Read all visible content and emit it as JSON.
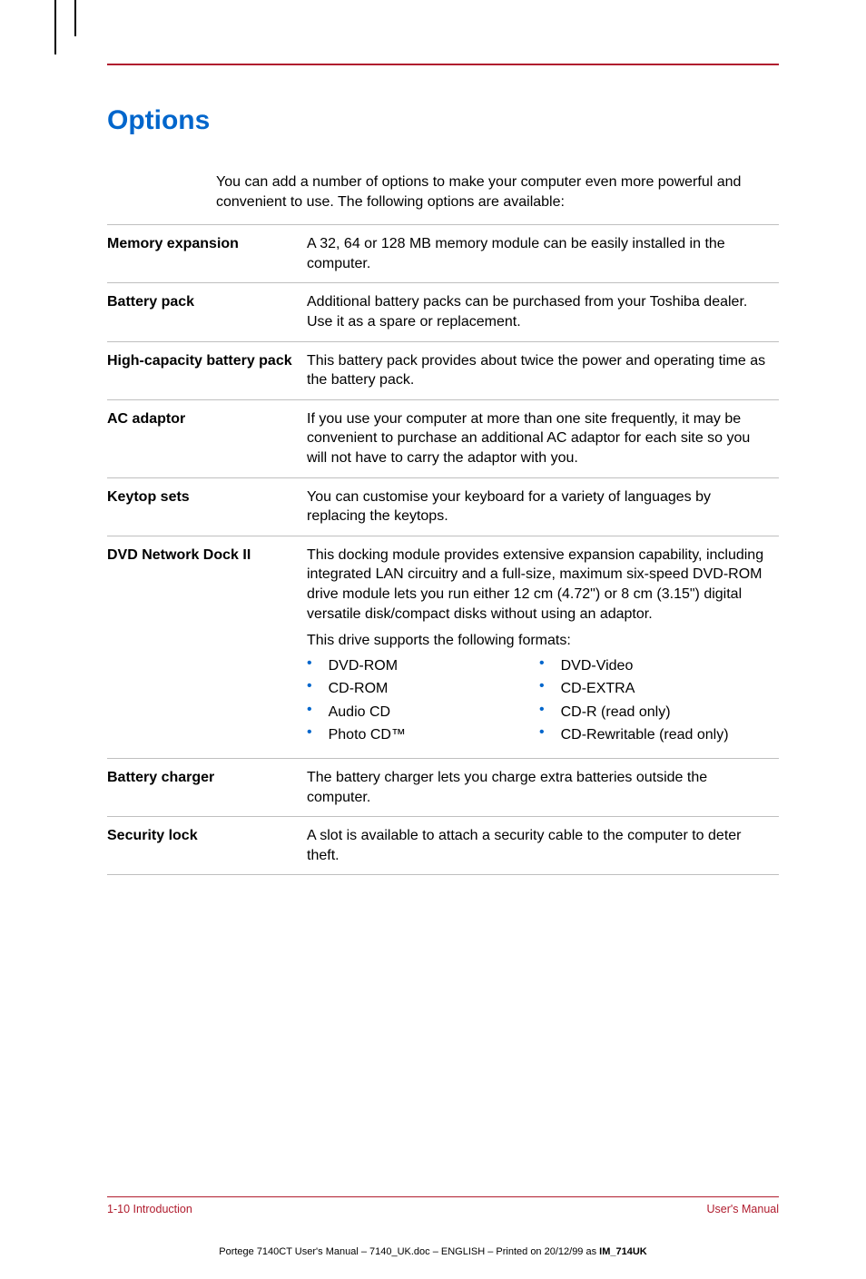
{
  "colors": {
    "accent_red": "#b01c2e",
    "heading_blue": "#0066cc",
    "bullet_blue": "#0066cc",
    "rule_gray": "#bfbfbf",
    "text_black": "#000000",
    "background": "#ffffff"
  },
  "typography": {
    "heading_fontsize": 30,
    "body_fontsize": 16,
    "footer_fontsize": 12.5,
    "printinfo_fontsize": 11,
    "font_family": "Arial"
  },
  "heading": "Options",
  "intro": "You can add a number of options to make your computer even more powerful and convenient to use. The following options are available:",
  "options": [
    {
      "label": "Memory expansion",
      "desc": "A 32, 64 or 128 MB memory module can be easily installed in the computer."
    },
    {
      "label": "Battery pack",
      "desc": "Additional battery packs can be purchased from your Toshiba dealer. Use it as a spare or replacement."
    },
    {
      "label": "High-capacity battery pack",
      "desc": "This battery pack provides about twice the power and operating time as the battery pack."
    },
    {
      "label": "AC adaptor",
      "desc": "If you use your computer at more than one site frequently, it may be convenient to purchase an additional AC adaptor for each site so you will not have to carry the adaptor with you."
    },
    {
      "label": "Keytop sets",
      "desc": "You can customise your keyboard for a variety of languages by replacing the keytops."
    },
    {
      "label": "DVD Network Dock II",
      "desc": "This docking module provides extensive expansion capability, including integrated LAN circuitry and a full-size, maximum six-speed DVD-ROM drive module lets you run either 12 cm (4.72\") or 8 cm (3.15\") digital versatile disk/compact disks without using an adaptor.",
      "formats_intro": "This drive supports the following formats:",
      "formats_left": [
        "DVD-ROM",
        "CD-ROM",
        "Audio CD",
        "Photo CD™"
      ],
      "formats_right": [
        "DVD-Video",
        "CD-EXTRA",
        "CD-R (read only)",
        "CD-Rewritable (read only)"
      ]
    },
    {
      "label": "Battery charger",
      "desc": "The battery charger lets you charge extra batteries outside the computer."
    },
    {
      "label": "Security lock",
      "desc": "A slot is available to attach a security cable to the computer to deter theft."
    }
  ],
  "footer": {
    "left": "1-10  Introduction",
    "right": "User's Manual"
  },
  "print_info": "Portege 7140CT User's Manual  – 7140_UK.doc – ENGLISH – Printed on 20/12/99 as IM_714UK"
}
